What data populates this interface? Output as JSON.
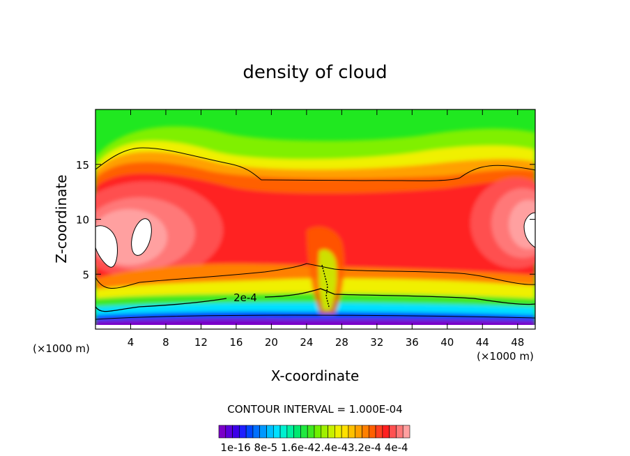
{
  "chart_data": {
    "type": "heatmap",
    "title": "density of cloud",
    "xlabel": "X-coordinate",
    "ylabel": "Z-coordinate",
    "x_unit": "(×1000 m)",
    "x_unit_right": "(×1000 m)",
    "xlim": [
      0,
      50
    ],
    "ylim": [
      0,
      20
    ],
    "x_ticks": [
      4,
      8,
      12,
      16,
      20,
      24,
      28,
      32,
      36,
      40,
      44,
      48
    ],
    "y_ticks": [
      5,
      10,
      15
    ],
    "contour_label": "2e-4",
    "contour_interval_text": "CONTOUR INTERVAL = 1.000E-04",
    "colorbar": {
      "min": 1e-16,
      "max": 0.0004,
      "tick_text": "1e-16 8e-5 1.6e-42.4e-43.2e-4 4e-4",
      "colors": [
        "#7a00c8",
        "#5a00dc",
        "#3c00e8",
        "#1e1eff",
        "#0046ff",
        "#0070ff",
        "#0098ff",
        "#00c0ff",
        "#00e0ff",
        "#00f0d0",
        "#00f0a0",
        "#00e870",
        "#20e840",
        "#40e820",
        "#70f000",
        "#a0f000",
        "#c8f000",
        "#f0f000",
        "#ffe000",
        "#ffc000",
        "#ffa000",
        "#ff8000",
        "#ff6000",
        "#ff4020",
        "#ff2020",
        "#ff5050",
        "#ff7878",
        "#ffa0a0"
      ]
    },
    "grid": false,
    "legend": "colorbar-bottom"
  }
}
